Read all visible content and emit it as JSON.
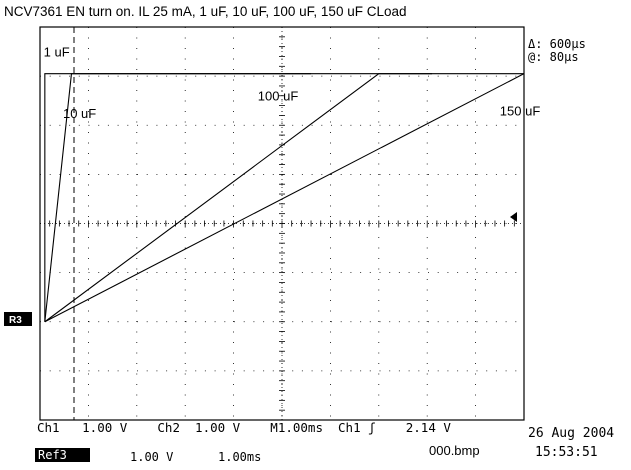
{
  "chart_data": {
    "type": "line",
    "title": "NCV7361 EN turn on.   IL 25 mA, 1 uF, 10 uF, 100 uF, 150 uF CLoad",
    "x_units": "ms",
    "y_units": "V",
    "xlim": [
      0,
      10
    ],
    "ylim": [
      -4,
      4
    ],
    "grid": true,
    "series": [
      {
        "name": "1 uF",
        "label_anchor": [
          0.15,
          3.4
        ],
        "x": [
          0.1,
          0.1,
          0.4,
          5.6
        ],
        "y": [
          -2.0,
          3.05,
          3.05,
          3.05
        ]
      },
      {
        "name": "10 uF",
        "label_anchor": [
          0.95,
          2.15
        ],
        "x": [
          0.1,
          0.65,
          8.1
        ],
        "y": [
          -2.0,
          3.05,
          3.05
        ]
      },
      {
        "name": "100 uF",
        "label_anchor": [
          9.0,
          2.5
        ],
        "x": [
          0.1,
          7.0,
          10.2
        ],
        "y": [
          -2.0,
          3.05,
          3.05
        ]
      },
      {
        "name": "150 uF",
        "label_anchor": [
          19.0,
          2.2
        ],
        "x": [
          0.1,
          10.0
        ],
        "y": [
          -2.0,
          3.05
        ]
      }
    ]
  },
  "readouts": {
    "delta": "Δ: 600μs",
    "at": "@: 80μs"
  },
  "ref_marker": "R3",
  "status": {
    "line1": "Ch1   1.00 V    Ch2  1.00 V    M1.00ms  Ch1 ʃ    2.14 V",
    "ref_name": "Ref3",
    "ref_volts": "1.00 V",
    "ref_time": "1.00ms",
    "filename": "000.bmp",
    "date": "26 Aug 2004",
    "time": "15:53:51"
  }
}
